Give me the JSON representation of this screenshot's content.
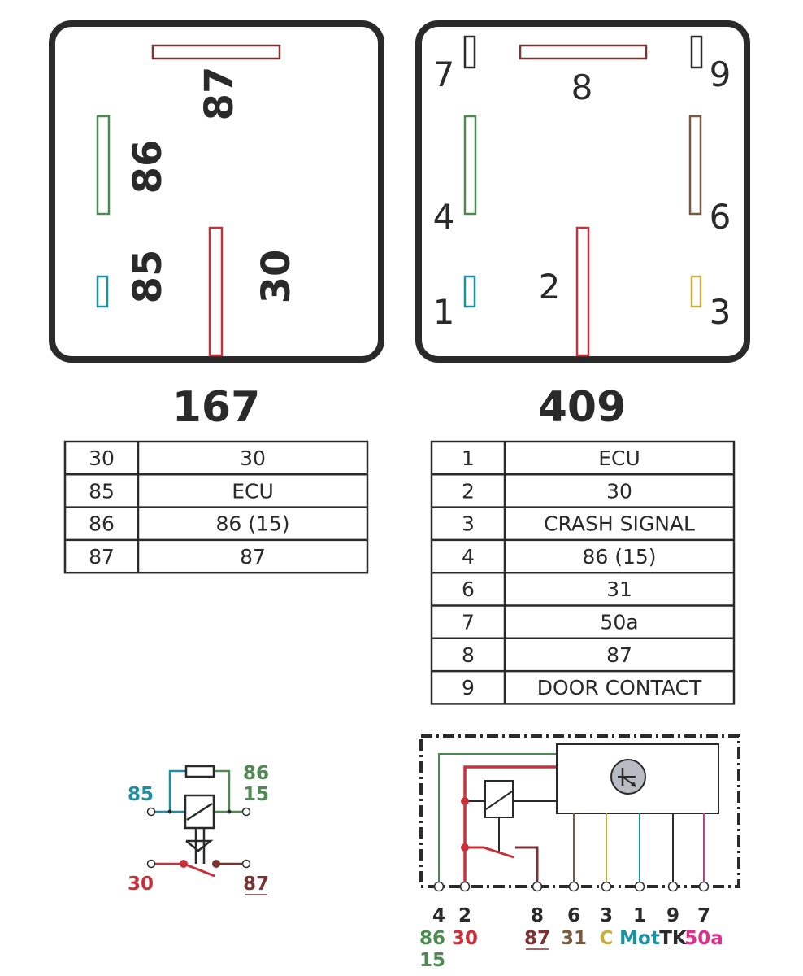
{
  "colors": {
    "dark": "#2a2a2a",
    "red": "#c8303a",
    "maroon": "#7b3232",
    "green": "#4d8a50",
    "teal": "#1a90a2",
    "brown": "#7a5a3e",
    "yellow": "#c8b040",
    "magenta": "#e0308c",
    "gray": "#b9bcc4"
  },
  "relay_167": {
    "title": "167",
    "pins": [
      "87",
      "86",
      "85",
      "30"
    ],
    "table": [
      {
        "pin": "30",
        "function": "30",
        "color": "#c8303a"
      },
      {
        "pin": "85",
        "function": "ECU",
        "color": "#1a90a2"
      },
      {
        "pin": "86",
        "function": "86 (15)",
        "color": "#4d8a50"
      },
      {
        "pin": "87",
        "function": "87",
        "color": "#7b3232"
      }
    ],
    "schematic": {
      "l85": "85",
      "l86": "86",
      "l15": "15",
      "l30": "30",
      "l87": "87"
    }
  },
  "relay_409": {
    "title": "409",
    "pins": [
      "7",
      "8",
      "9",
      "4",
      "6",
      "2",
      "1",
      "3"
    ],
    "table": [
      {
        "pin": "1",
        "function": "ECU",
        "color": "#1a90a2"
      },
      {
        "pin": "2",
        "function": "30",
        "color": "#c8303a"
      },
      {
        "pin": "3",
        "function": "CRASH SIGNAL",
        "color": "#c8b040"
      },
      {
        "pin": "4",
        "function": "86 (15)",
        "color": "#4d8a50"
      },
      {
        "pin": "6",
        "function": "31",
        "color": "#7a5a3e"
      },
      {
        "pin": "7",
        "function": "50a",
        "color": "#e0308c"
      },
      {
        "pin": "8",
        "function": "87",
        "color": "#7b3232"
      },
      {
        "pin": "9",
        "function": "DOOR CONTACT",
        "color": "#2a2a2a"
      }
    ],
    "schematic_terminals": [
      {
        "num": "4",
        "name": "86",
        "name2": "15",
        "color": "#4d8a50"
      },
      {
        "num": "2",
        "name": "30",
        "color": "#c8303a"
      },
      {
        "num": "8",
        "name": "87",
        "color": "#7b3232"
      },
      {
        "num": "6",
        "name": "31",
        "color": "#7a5a3e"
      },
      {
        "num": "3",
        "name": "C",
        "color": "#c8b040"
      },
      {
        "num": "1",
        "name": "Mot",
        "color": "#1a90a2"
      },
      {
        "num": "9",
        "name": "TK",
        "color": "#2a2a2a"
      },
      {
        "num": "7",
        "name": "50a",
        "color": "#e0308c"
      }
    ]
  }
}
